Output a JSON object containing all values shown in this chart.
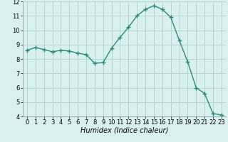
{
  "x": [
    0,
    1,
    2,
    3,
    4,
    5,
    6,
    7,
    8,
    9,
    10,
    11,
    12,
    13,
    14,
    15,
    16,
    17,
    18,
    19,
    20,
    21,
    22,
    23
  ],
  "y": [
    8.6,
    8.8,
    8.65,
    8.5,
    8.6,
    8.55,
    8.4,
    8.3,
    7.7,
    7.75,
    8.75,
    9.5,
    10.2,
    11.0,
    11.45,
    11.7,
    11.45,
    10.9,
    9.3,
    7.8,
    6.0,
    5.6,
    4.2,
    4.1
  ],
  "line_color": "#2e8b70",
  "marker": "+",
  "marker_size": 4,
  "marker_linewidth": 1.0,
  "bg_color": "#d8f0f0",
  "grid_color": "#b0d0d0",
  "xlabel": "Humidex (Indice chaleur)",
  "xlabel_style": "italic",
  "xlabel_fontsize": 7,
  "tick_fontsize": 6,
  "line_width": 1.0,
  "ylim": [
    4,
    12
  ],
  "xlim": [
    -0.5,
    23.5
  ],
  "yticks": [
    4,
    5,
    6,
    7,
    8,
    9,
    10,
    11,
    12
  ],
  "xticks": [
    0,
    1,
    2,
    3,
    4,
    5,
    6,
    7,
    8,
    9,
    10,
    11,
    12,
    13,
    14,
    15,
    16,
    17,
    18,
    19,
    20,
    21,
    22,
    23
  ]
}
